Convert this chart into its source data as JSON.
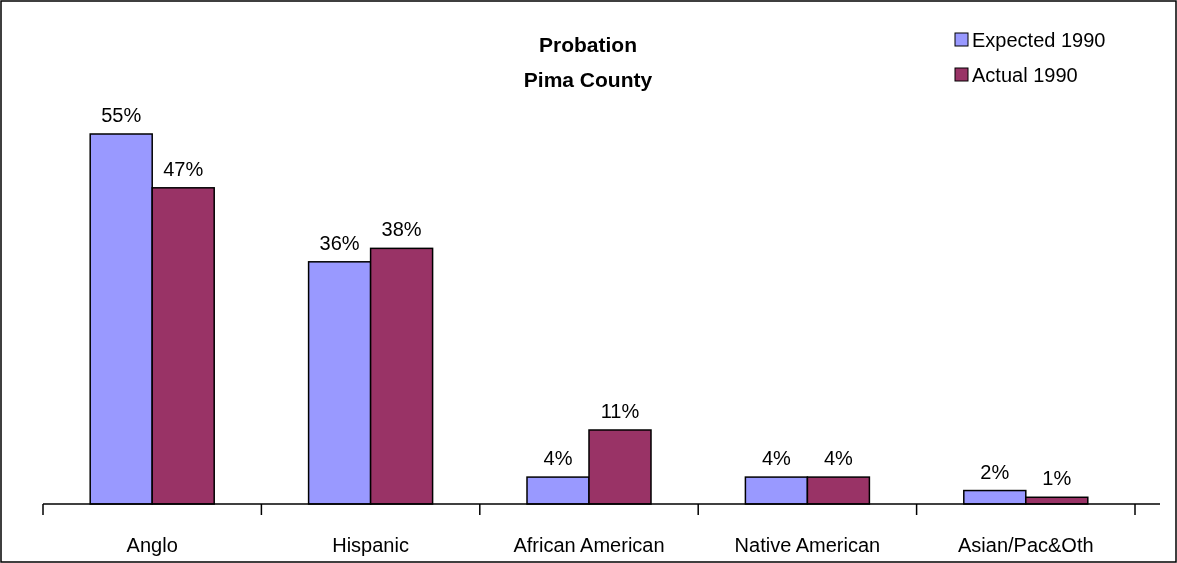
{
  "chart_data": {
    "type": "bar",
    "title": "Probation\nPima County",
    "categories": [
      "Anglo",
      "Hispanic",
      "African American",
      "Native American",
      "Asian/Pac&Oth"
    ],
    "legend": "top right",
    "series": [
      {
        "name": "Expected 1990",
        "color": "#9999ff",
        "values": [
          55,
          36,
          4,
          4,
          2
        ],
        "value_labels": [
          "55%",
          "36%",
          "4%",
          "4%",
          "2%"
        ]
      },
      {
        "name": "Actual 1990",
        "color": "#993366",
        "values": [
          47,
          38,
          11,
          4,
          1
        ],
        "value_labels": [
          "47%",
          "38%",
          "11%",
          "4%",
          "1%"
        ]
      }
    ]
  }
}
